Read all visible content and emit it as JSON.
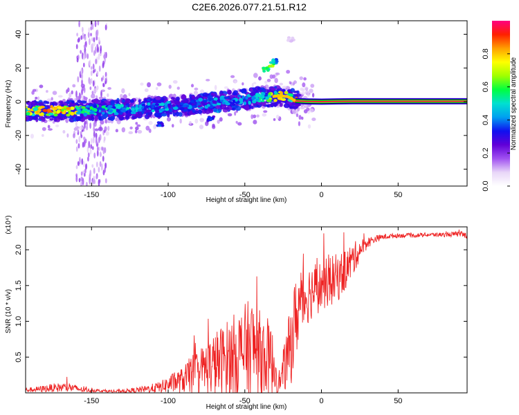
{
  "title": "C2E6.2026.077.21.51.R12",
  "chart_data": [
    {
      "type": "heatmap",
      "xlabel": "Height of straight line (km)",
      "ylabel": "Frequency (Hz)",
      "xlim": [
        -193,
        95
      ],
      "ylim": [
        -50,
        48
      ],
      "xticks": [
        -150,
        -100,
        -50,
        0,
        50
      ],
      "yticks": [
        -40,
        -20,
        0,
        20,
        40
      ],
      "xtick_labels": [
        "-150",
        "-100",
        "-50",
        "0",
        "50"
      ],
      "ytick_labels": [
        "-40",
        "-20",
        "0",
        "20",
        "40"
      ],
      "colorbar": {
        "label": "Normalized spectral amplitude",
        "range": [
          0,
          1
        ],
        "ticks": [
          "0.0",
          "0.2",
          "0.4",
          "0.6",
          "0.8"
        ],
        "stops": [
          "#ffffff",
          "#e8d6f8",
          "#a050f0",
          "#6000d8",
          "#1010f0",
          "#00a0f0",
          "#00e0d0",
          "#00ff40",
          "#a0ff00",
          "#ffff00",
          "#ffa000",
          "#ff2000",
          "#ff0080"
        ]
      },
      "main_track": [
        {
          "x": -193,
          "y": -5.5,
          "a": 0.75
        },
        {
          "x": -185,
          "y": -5.5,
          "a": 0.85
        },
        {
          "x": -175,
          "y": -5.5,
          "a": 0.85
        },
        {
          "x": -165,
          "y": -5.5,
          "a": 0.85
        },
        {
          "x": -158,
          "y": -5.3,
          "a": 0.7
        },
        {
          "x": -150,
          "y": -5.0,
          "a": 0.55
        },
        {
          "x": -140,
          "y": -4.8,
          "a": 0.5
        },
        {
          "x": -130,
          "y": -4.5,
          "a": 0.5
        },
        {
          "x": -120,
          "y": -4.0,
          "a": 0.45
        },
        {
          "x": -110,
          "y": -3.5,
          "a": 0.45
        },
        {
          "x": -100,
          "y": -2.8,
          "a": 0.45
        },
        {
          "x": -90,
          "y": -2.0,
          "a": 0.4
        },
        {
          "x": -80,
          "y": -1.2,
          "a": 0.4
        },
        {
          "x": -70,
          "y": -0.4,
          "a": 0.45
        },
        {
          "x": -60,
          "y": 0.5,
          "a": 0.45
        },
        {
          "x": -50,
          "y": 1.5,
          "a": 0.45
        },
        {
          "x": -40,
          "y": 2.5,
          "a": 0.5
        },
        {
          "x": -32,
          "y": 3.0,
          "a": 0.7
        },
        {
          "x": -27,
          "y": 3.5,
          "a": 0.8
        },
        {
          "x": -22,
          "y": 3.0,
          "a": 0.8
        },
        {
          "x": -17,
          "y": 0.5,
          "a": 0.85
        },
        {
          "x": -10,
          "y": 0.2,
          "a": 0.95
        },
        {
          "x": 0,
          "y": 0.0,
          "a": 0.95
        },
        {
          "x": 10,
          "y": 0.2,
          "a": 0.95
        },
        {
          "x": 20,
          "y": 0.3,
          "a": 0.95
        },
        {
          "x": 30,
          "y": 0.3,
          "a": 0.95
        },
        {
          "x": 40,
          "y": 0.3,
          "a": 0.95
        },
        {
          "x": 50,
          "y": 0.3,
          "a": 0.95
        },
        {
          "x": 60,
          "y": 0.3,
          "a": 0.95
        },
        {
          "x": 70,
          "y": 0.3,
          "a": 0.95
        },
        {
          "x": 80,
          "y": 0.3,
          "a": 0.95
        },
        {
          "x": 95,
          "y": 0.3,
          "a": 0.95
        }
      ],
      "side_features": [
        {
          "x": -36,
          "y": 19,
          "a": 0.6
        },
        {
          "x": -33,
          "y": 22,
          "a": 0.7
        },
        {
          "x": -30,
          "y": 24,
          "a": 0.5
        },
        {
          "x": -20,
          "y": 37,
          "a": 0.1
        },
        {
          "x": -105,
          "y": -13,
          "a": 0.35
        },
        {
          "x": -72,
          "y": -10,
          "a": 0.35
        },
        {
          "x": -68,
          "y": -5,
          "a": 0.45
        }
      ]
    },
    {
      "type": "line",
      "xlabel": "Height of straight line (km)",
      "ylabel": "SNR (10 * v/v)",
      "y_multiplier": "(x10⁴)",
      "xlim": [
        -193,
        95
      ],
      "ylim": [
        0,
        2.32
      ],
      "xticks": [
        -150,
        -100,
        -50,
        0,
        50
      ],
      "yticks": [
        0.5,
        1.0,
        1.5,
        2.0
      ],
      "xtick_labels": [
        "-150",
        "-100",
        "-50",
        "0",
        "50"
      ],
      "ytick_labels": [
        "0.5",
        "1.0",
        "1.5",
        "2.0"
      ],
      "color": "#ee2222",
      "series": [
        {
          "x": [
            -193,
            -185,
            -175,
            -165,
            -155,
            -145,
            -135,
            -125,
            -115,
            -105,
            -100,
            -95,
            -90,
            -85,
            -80,
            -75,
            -70,
            -65,
            -60,
            -55,
            -50,
            -45,
            -40,
            -35,
            -30,
            -27,
            -25,
            -22,
            -20,
            -17,
            -15,
            -12,
            -10,
            -8,
            -5,
            0,
            5,
            10,
            15,
            20,
            25,
            30,
            35,
            40,
            50,
            60,
            70,
            80,
            90,
            95
          ],
          "y": [
            0.04,
            0.05,
            0.07,
            0.08,
            0.04,
            0.03,
            0.02,
            0.03,
            0.05,
            0.08,
            0.12,
            0.15,
            0.18,
            0.25,
            0.3,
            0.35,
            0.4,
            0.45,
            0.5,
            0.55,
            0.6,
            0.65,
            0.55,
            0.5,
            0.35,
            0.15,
            0.3,
            0.5,
            0.7,
            1.0,
            1.2,
            1.3,
            1.35,
            1.4,
            1.45,
            1.5,
            1.55,
            1.6,
            1.7,
            1.85,
            2.0,
            2.1,
            2.15,
            2.18,
            2.2,
            2.2,
            2.21,
            2.21,
            2.22,
            2.2
          ],
          "spread": [
            0.03,
            0.04,
            0.06,
            0.07,
            0.03,
            0.02,
            0.02,
            0.03,
            0.05,
            0.08,
            0.12,
            0.15,
            0.18,
            0.28,
            0.32,
            0.38,
            0.45,
            0.5,
            0.55,
            0.6,
            0.65,
            0.7,
            0.6,
            0.55,
            0.4,
            0.1,
            0.3,
            0.45,
            0.6,
            0.6,
            0.55,
            0.5,
            0.45,
            0.4,
            0.4,
            0.35,
            0.35,
            0.35,
            0.3,
            0.25,
            0.15,
            0.08,
            0.05,
            0.04,
            0.03,
            0.03,
            0.03,
            0.03,
            0.04,
            0.04
          ]
        }
      ]
    }
  ]
}
